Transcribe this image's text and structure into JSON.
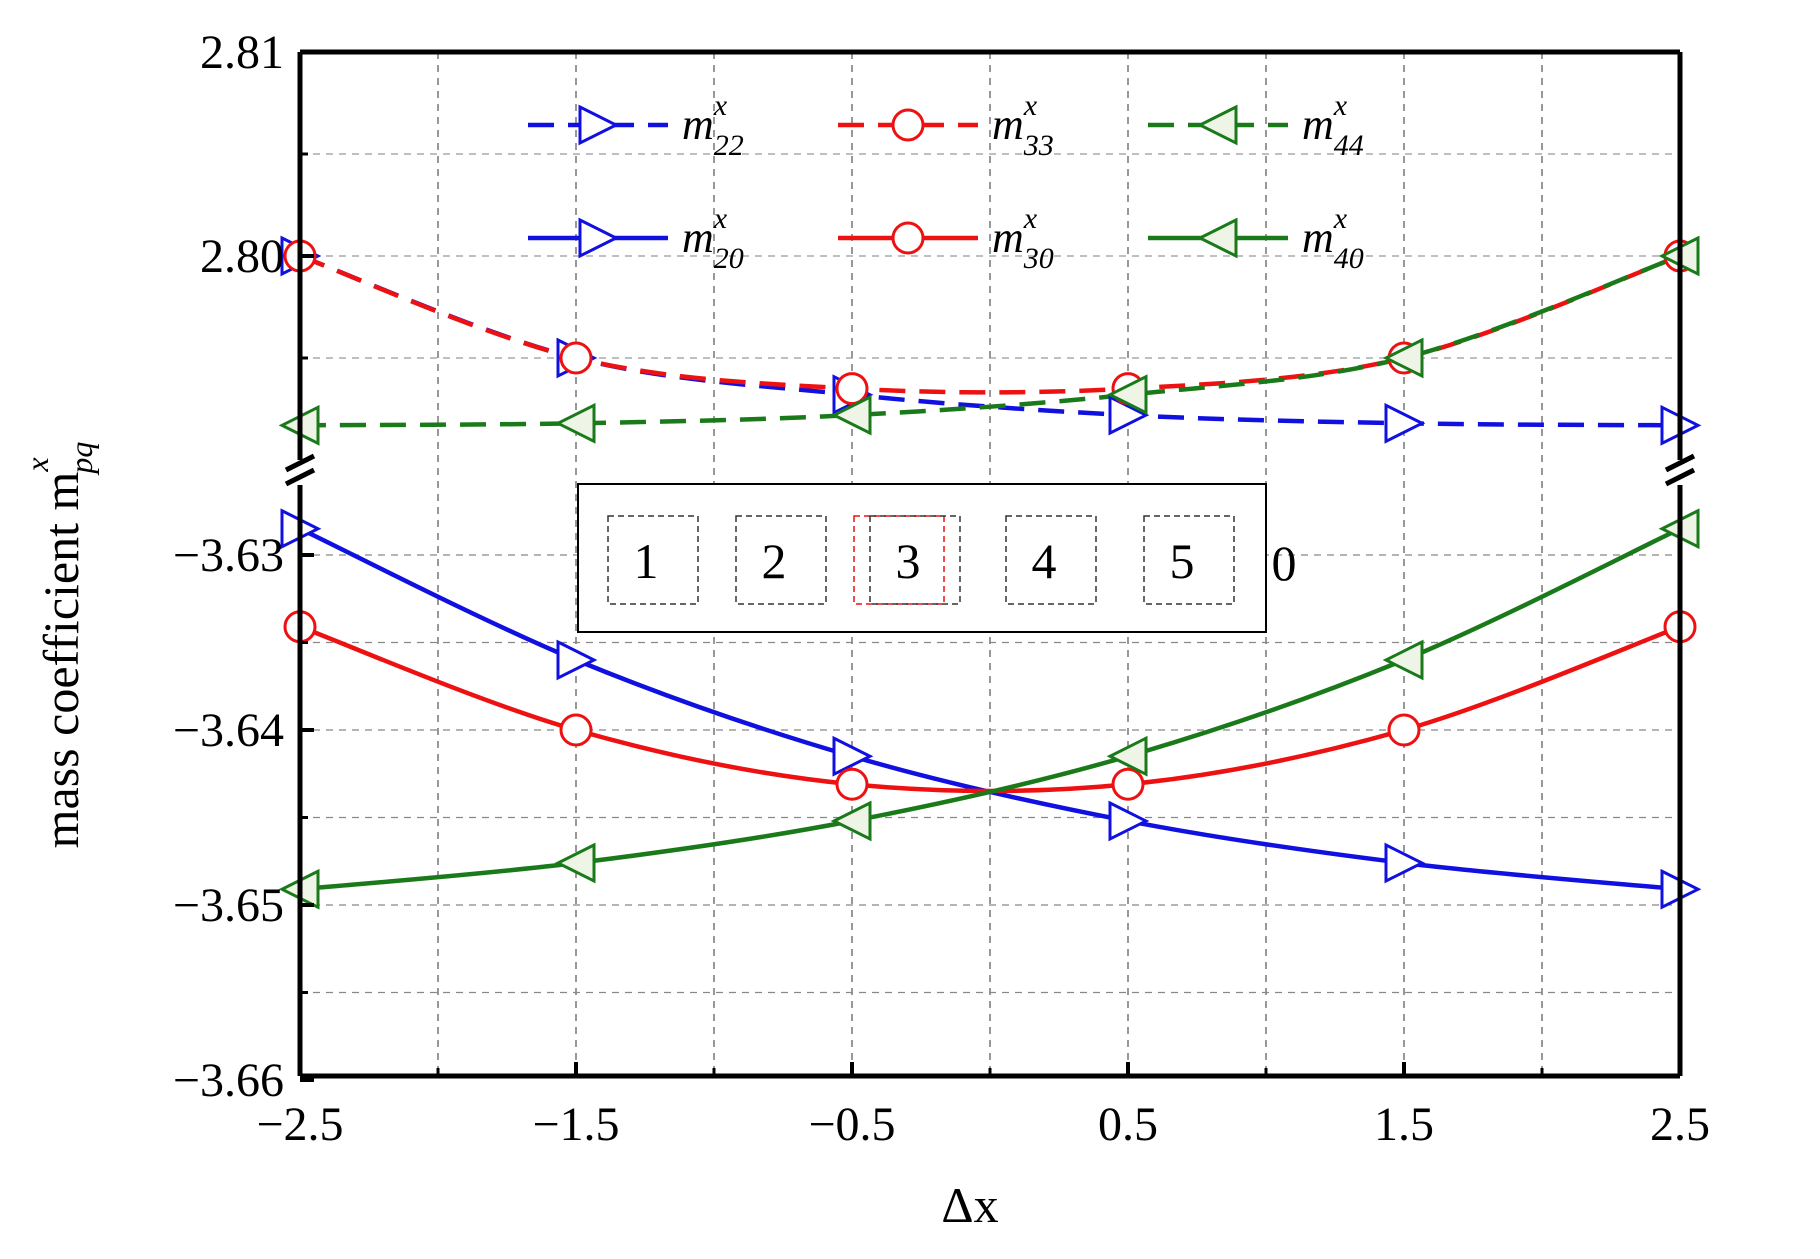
{
  "chart_data": {
    "type": "line",
    "xlabel": "Δx",
    "ylabel": "mass coefficient m",
    "ylabel_sup": "x",
    "ylabel_sub": "pq",
    "x": [
      -2.5,
      -1.5,
      -0.5,
      0.5,
      1.5,
      2.5
    ],
    "xticks": [
      "−2.5",
      "−1.5",
      "−0.5",
      "0.5",
      "1.5",
      "2.5"
    ],
    "xlim": [
      -2.5,
      2.5
    ],
    "upper_panel": {
      "ylim": [
        2.79,
        2.81
      ],
      "yticks": [
        {
          "value": 2.81,
          "label": "2.81"
        },
        {
          "value": 2.8,
          "label": "2.80"
        }
      ]
    },
    "lower_panel": {
      "ylim": [
        -3.66,
        -3.627
      ],
      "yticks": [
        {
          "value": -3.63,
          "label": "−3.63"
        },
        {
          "value": -3.64,
          "label": "−3.64"
        },
        {
          "value": -3.65,
          "label": "−3.65"
        },
        {
          "value": -3.66,
          "label": "−3.66"
        }
      ]
    },
    "grid": true,
    "axis_break": true,
    "series": [
      {
        "name": "m22",
        "sub": "22",
        "panel": "upper",
        "color": "#1010e0",
        "dash": true,
        "marker": "triangle-right",
        "values": [
          2.8,
          2.795,
          2.7932,
          2.7922,
          2.7918,
          2.7917
        ]
      },
      {
        "name": "m33",
        "sub": "33",
        "panel": "upper",
        "color": "#ee1111",
        "dash": true,
        "marker": "circle",
        "values": [
          2.8,
          2.795,
          2.7935,
          2.7935,
          2.795,
          2.8
        ]
      },
      {
        "name": "m44",
        "sub": "44",
        "panel": "upper",
        "color": "#1a7a1a",
        "dash": true,
        "marker": "triangle-left",
        "values": [
          2.7917,
          2.7918,
          2.7922,
          2.7932,
          2.795,
          2.8
        ]
      },
      {
        "name": "m20",
        "sub": "20",
        "panel": "lower",
        "color": "#1010e0",
        "dash": false,
        "marker": "triangle-right",
        "values": [
          -3.6285,
          -3.636,
          -3.6415,
          -3.6452,
          -3.6476,
          -3.6491
        ]
      },
      {
        "name": "m30",
        "sub": "30",
        "panel": "lower",
        "color": "#ee1111",
        "dash": false,
        "marker": "circle",
        "values": [
          -3.6341,
          -3.64,
          -3.6431,
          -3.6431,
          -3.64,
          -3.6341
        ]
      },
      {
        "name": "m40",
        "sub": "40",
        "panel": "lower",
        "color": "#1a7a1a",
        "dash": false,
        "marker": "triangle-left",
        "values": [
          -3.6491,
          -3.6476,
          -3.6452,
          -3.6415,
          -3.636,
          -3.6285
        ]
      }
    ],
    "legend": {
      "placement": "top",
      "columns": 3,
      "order": [
        "m22",
        "m33",
        "m44",
        "m20",
        "m30",
        "m40"
      ],
      "sup": "x",
      "base": "m"
    },
    "inset": {
      "boxes": [
        "1",
        "2",
        "3",
        "4",
        "5"
      ],
      "trailing": "0"
    }
  }
}
